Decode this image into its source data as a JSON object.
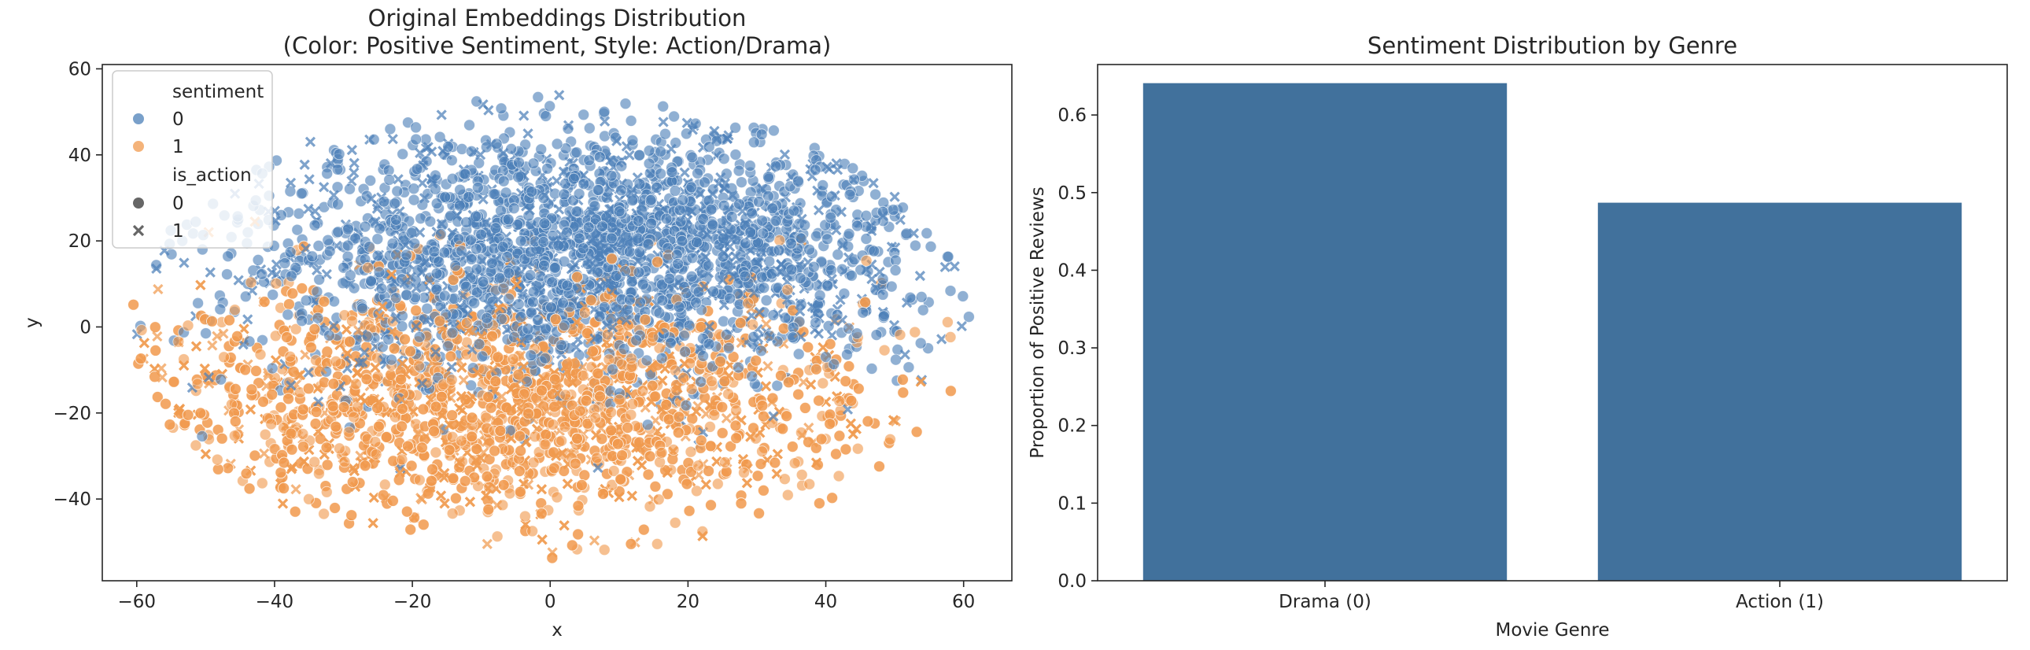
{
  "colors": {
    "sentiment_0": "#4c80b8",
    "sentiment_1": "#f09a4e",
    "bar": "#41719c",
    "axes": "#262626"
  },
  "chart_data": [
    {
      "type": "scatter",
      "title_line1": "Original Embeddings Distribution",
      "title_line2": "(Color: Positive Sentiment, Style: Action/Drama)",
      "xlabel": "x",
      "ylabel": "y",
      "xlim": [
        -65,
        67
      ],
      "ylim": [
        -59,
        61
      ],
      "xticks": [
        -60,
        -40,
        -20,
        0,
        20,
        40,
        60
      ],
      "yticks": [
        -40,
        -20,
        0,
        20,
        40,
        60
      ],
      "grid": false,
      "legend": {
        "placement": "top-left",
        "hue_title": "sentiment",
        "hue_entries": [
          "0",
          "1"
        ],
        "style_title": "is_action",
        "style_entries": [
          "0",
          "1"
        ]
      },
      "marker_styles": {
        "0": "circle",
        "1": "x"
      },
      "series_summary": [
        {
          "sentiment": "0",
          "description": "dense cluster in the upper half",
          "center": [
            5,
            18
          ],
          "spread": [
            26,
            15
          ]
        },
        {
          "sentiment": "1",
          "description": "dense cluster in the lower half",
          "center": [
            -8,
            -18
          ],
          "spread": [
            28,
            14
          ]
        }
      ]
    },
    {
      "type": "bar",
      "title": "Sentiment Distribution by Genre",
      "xlabel": "Movie Genre",
      "ylabel": "Proportion of Positive Reviews",
      "categories": [
        "Drama (0)",
        "Action (1)"
      ],
      "values": [
        0.641,
        0.487
      ],
      "ylim": [
        0,
        0.665
      ],
      "yticks": [
        0.0,
        0.1,
        0.2,
        0.3,
        0.4,
        0.5,
        0.6
      ],
      "ytick_labels": [
        "0.0",
        "0.1",
        "0.2",
        "0.3",
        "0.4",
        "0.5",
        "0.6"
      ],
      "grid": false
    }
  ]
}
